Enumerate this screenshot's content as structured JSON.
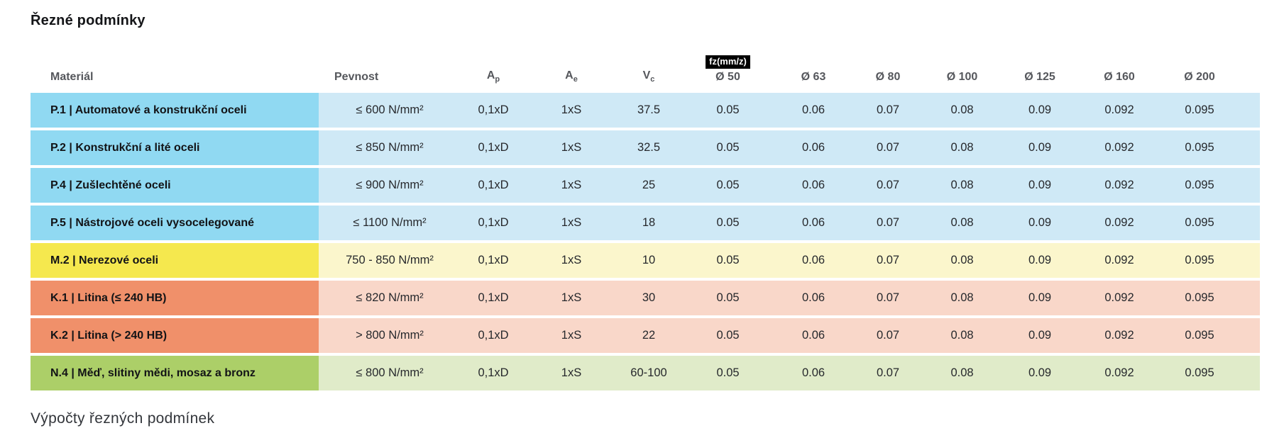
{
  "page": {
    "title": "Řezné podmínky",
    "footer_heading": "Výpočty řezných podmínek"
  },
  "table": {
    "fz_badge": "fz(mm/z)",
    "columns": {
      "material": "Materiál",
      "pevnost": "Pevnost",
      "ap_base": "A",
      "ap_sub": "p",
      "ae_base": "A",
      "ae_sub": "e",
      "vc_base": "V",
      "vc_sub": "c",
      "diameters": [
        "Ø 50",
        "Ø 63",
        "Ø 80",
        "Ø 100",
        "Ø 125",
        "Ø 160",
        "Ø 200"
      ]
    },
    "colors": {
      "blue": {
        "label": "#90d9f2",
        "cells": "#cfe9f6"
      },
      "yellow": {
        "label": "#f5e84e",
        "cells": "#fbf6cc"
      },
      "salmon": {
        "label": "#f0906a",
        "cells": "#f9d7c9"
      },
      "green": {
        "label": "#accf68",
        "cells": "#e0ebc9"
      }
    },
    "rows": [
      {
        "material": "P.1 | Automatové a konstrukční oceli",
        "pevnost": "≤ 600 N/mm²",
        "ap": "0,1xD",
        "ae": "1xS",
        "vc": "37.5",
        "fz": [
          "0.05",
          "0.06",
          "0.07",
          "0.08",
          "0.09",
          "0.092",
          "0.095"
        ],
        "color_group": "blue"
      },
      {
        "material": "P.2 | Konstrukční a lité oceli",
        "pevnost": "≤ 850 N/mm²",
        "ap": "0,1xD",
        "ae": "1xS",
        "vc": "32.5",
        "fz": [
          "0.05",
          "0.06",
          "0.07",
          "0.08",
          "0.09",
          "0.092",
          "0.095"
        ],
        "color_group": "blue"
      },
      {
        "material": "P.4 | Zušlechtěné oceli",
        "pevnost": "≤ 900 N/mm²",
        "ap": "0,1xD",
        "ae": "1xS",
        "vc": "25",
        "fz": [
          "0.05",
          "0.06",
          "0.07",
          "0.08",
          "0.09",
          "0.092",
          "0.095"
        ],
        "color_group": "blue"
      },
      {
        "material": "P.5 | Nástrojové oceli vysocelegované",
        "pevnost": "≤ 1100 N/mm²",
        "ap": "0,1xD",
        "ae": "1xS",
        "vc": "18",
        "fz": [
          "0.05",
          "0.06",
          "0.07",
          "0.08",
          "0.09",
          "0.092",
          "0.095"
        ],
        "color_group": "blue"
      },
      {
        "material": "M.2 | Nerezové oceli",
        "pevnost": "750 - 850 N/mm²",
        "ap": "0,1xD",
        "ae": "1xS",
        "vc": "10",
        "fz": [
          "0.05",
          "0.06",
          "0.07",
          "0.08",
          "0.09",
          "0.092",
          "0.095"
        ],
        "color_group": "yellow"
      },
      {
        "material": "K.1 | Litina (≤ 240 HB)",
        "pevnost": "≤ 820 N/mm²",
        "ap": "0,1xD",
        "ae": "1xS",
        "vc": "30",
        "fz": [
          "0.05",
          "0.06",
          "0.07",
          "0.08",
          "0.09",
          "0.092",
          "0.095"
        ],
        "color_group": "salmon"
      },
      {
        "material": "K.2 | Litina (> 240 HB)",
        "pevnost": "> 800 N/mm²",
        "ap": "0,1xD",
        "ae": "1xS",
        "vc": "22",
        "fz": [
          "0.05",
          "0.06",
          "0.07",
          "0.08",
          "0.09",
          "0.092",
          "0.095"
        ],
        "color_group": "salmon"
      },
      {
        "material": "N.4 | Měď, slitiny mědi, mosaz a bronz",
        "pevnost": "≤ 800 N/mm²",
        "ap": "0,1xD",
        "ae": "1xS",
        "vc": "60-100",
        "fz": [
          "0.05",
          "0.06",
          "0.07",
          "0.08",
          "0.09",
          "0.092",
          "0.095"
        ],
        "color_group": "green"
      }
    ]
  }
}
